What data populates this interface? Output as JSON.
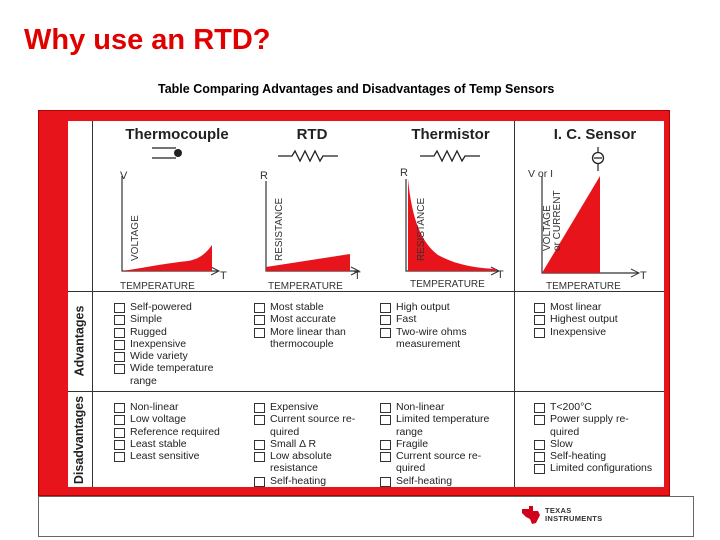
{
  "slide": {
    "title": "Why use an RTD?",
    "subtitle": "Table Comparing Advantages and Disadvantages of Temp Sensors"
  },
  "table": {
    "columns": [
      {
        "name": "Thermocouple",
        "ylabel": "VOLTAGE",
        "yaxis": "V",
        "xlabel": "TEMPERATURE",
        "xaxis": "T",
        "advantages": [
          "Self-powered",
          "Simple",
          "Rugged",
          "Inexpensive",
          "Wide variety",
          "Wide temperature",
          "range"
        ],
        "disadvantages": [
          "Non-linear",
          "Low voltage",
          "Reference required",
          "Least stable",
          "Least sensitive"
        ]
      },
      {
        "name": "RTD",
        "ylabel": "RESISTANCE",
        "yaxis": "R",
        "xlabel": "TEMPERATURE",
        "xaxis": "T",
        "advantages": [
          "Most stable",
          "Most accurate",
          "More linear than",
          "thermocouple"
        ],
        "disadvantages": [
          "Expensive",
          "Current source re-",
          "quired",
          "Small Δ R",
          "Low absolute",
          "resistance",
          "Self-heating"
        ]
      },
      {
        "name": "Thermistor",
        "ylabel": "RESISTANCE",
        "yaxis": "R",
        "xlabel": "TEMPERATURE",
        "xaxis": "T",
        "advantages": [
          "High output",
          "Fast",
          "Two-wire ohms",
          "measurement"
        ],
        "disadvantages": [
          "Non-linear",
          "Limited temperature",
          "range",
          "Fragile",
          "Current source re-",
          "quired",
          "Self-heating"
        ]
      },
      {
        "name": "I. C. Sensor",
        "ylabel": "VOLTAGE or CURRENT",
        "ylabel_1": "VOLTAGE",
        "ylabel_2": "or CURRENT",
        "yaxis": "V or I",
        "xlabel": "TEMPERATURE",
        "xaxis": "T",
        "advantages": [
          "Most linear",
          "Highest output",
          "Inexpensive"
        ],
        "disadvantages": [
          "T<200°C",
          "Power supply re-",
          "quired",
          "Slow",
          "Self-heating",
          "Limited configurations"
        ]
      }
    ],
    "row_labels": {
      "advantages": "Advantages",
      "disadvantages": "Disadvantages"
    }
  },
  "logo": {
    "line1": "TEXAS",
    "line2": "INSTRUMENTS"
  },
  "colors": {
    "title": "#e00000",
    "frame": "#e8141c",
    "curve_fill": "#e8141c"
  }
}
